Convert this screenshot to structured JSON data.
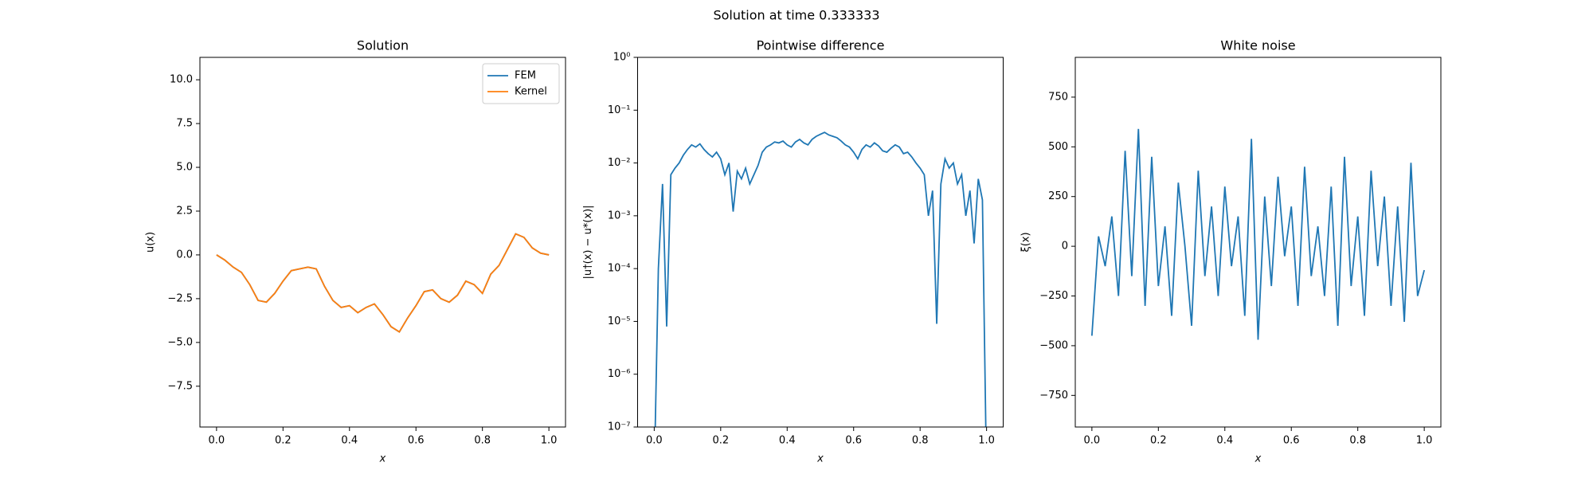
{
  "title": "Solution at time 0.333333",
  "chart_data": [
    {
      "type": "line",
      "title": "Solution",
      "xlabel": "x",
      "ylabel": "u(x)",
      "xlim": [
        -0.05,
        1.05
      ],
      "ylim": [
        -9.83,
        11.28
      ],
      "xticks": [
        {
          "value": 0,
          "label": "0.0"
        },
        0.2,
        0.4,
        0.6,
        0.8,
        {
          "value": 1,
          "label": "1.0"
        }
      ],
      "yticks": [
        {
          "value": -7.5,
          "label": "−7.5"
        },
        {
          "value": -5,
          "label": "−5.0"
        },
        {
          "value": -2.5,
          "label": "−2.5"
        },
        {
          "value": 0,
          "label": "0.0"
        },
        2.5,
        {
          "value": 5,
          "label": "5.0"
        },
        7.5,
        {
          "value": 10,
          "label": "10.0"
        }
      ],
      "legend": "upper right",
      "x": [
        0,
        0.025,
        0.05,
        0.075,
        0.1,
        0.125,
        0.15,
        0.175,
        0.2,
        0.225,
        0.25,
        0.275,
        0.3,
        0.325,
        0.35,
        0.375,
        0.4,
        0.425,
        0.45,
        0.475,
        0.5,
        0.525,
        0.55,
        0.575,
        0.6,
        0.625,
        0.65,
        0.675,
        0.7,
        0.725,
        0.75,
        0.775,
        0.8,
        0.825,
        0.85,
        0.875,
        0.9,
        0.925,
        0.95,
        0.975,
        1.0
      ],
      "series": [
        {
          "name": "FEM",
          "color": "#1f77b4",
          "values": [
            0,
            -0.3,
            -0.7,
            -1.0,
            -1.7,
            -2.6,
            -2.7,
            -2.2,
            -1.5,
            -0.9,
            -0.8,
            -0.7,
            -0.8,
            -1.8,
            -2.6,
            -3.0,
            -2.9,
            -3.3,
            -3.0,
            -2.8,
            -3.4,
            -4.1,
            -4.4,
            -3.6,
            -2.9,
            -2.1,
            -2.0,
            -2.5,
            -2.7,
            -2.3,
            -1.5,
            -1.7,
            -2.2,
            -1.1,
            -0.6,
            0.3,
            1.2,
            1.0,
            0.4,
            0.1,
            0.0
          ]
        },
        {
          "name": "Kernel",
          "color": "#ff7f0e",
          "values": [
            0,
            -0.3,
            -0.7,
            -1.0,
            -1.7,
            -2.6,
            -2.7,
            -2.2,
            -1.5,
            -0.9,
            -0.8,
            -0.7,
            -0.8,
            -1.8,
            -2.6,
            -3.0,
            -2.9,
            -3.3,
            -3.0,
            -2.8,
            -3.4,
            -4.1,
            -4.4,
            -3.6,
            -2.9,
            -2.1,
            -2.0,
            -2.5,
            -2.7,
            -2.3,
            -1.5,
            -1.7,
            -2.2,
            -1.1,
            -0.6,
            0.3,
            1.2,
            1.0,
            0.4,
            0.1,
            0.0
          ]
        }
      ]
    },
    {
      "type": "line",
      "title": "Pointwise difference",
      "xlabel": "x",
      "ylabel": "|u†(x) − u*(x)|",
      "yscale": "log",
      "xlim": [
        -0.05,
        1.05
      ],
      "ylim": [
        1e-07,
        1
      ],
      "xticks": [
        {
          "value": 0,
          "label": "0.0"
        },
        0.2,
        0.4,
        0.6,
        0.8,
        {
          "value": 1,
          "label": "1.0"
        }
      ],
      "yticks": [
        {
          "value": 1e-07,
          "label": "10⁻⁷"
        },
        {
          "value": 1e-06,
          "label": "10⁻⁶"
        },
        {
          "value": 1e-05,
          "label": "10⁻⁵"
        },
        {
          "value": 0.0001,
          "label": "10⁻⁴"
        },
        {
          "value": 0.001,
          "label": "10⁻³"
        },
        {
          "value": 0.01,
          "label": "10⁻²"
        },
        {
          "value": 0.1,
          "label": "10⁻¹"
        },
        {
          "value": 1,
          "label": "10⁰"
        }
      ],
      "x": [
        0,
        0.0125,
        0.025,
        0.0375,
        0.05,
        0.0625,
        0.075,
        0.0875,
        0.1,
        0.1125,
        0.125,
        0.1375,
        0.15,
        0.1625,
        0.175,
        0.1875,
        0.2,
        0.2125,
        0.225,
        0.2375,
        0.25,
        0.2625,
        0.275,
        0.2875,
        0.3,
        0.3125,
        0.325,
        0.3375,
        0.35,
        0.3625,
        0.375,
        0.3875,
        0.4,
        0.4125,
        0.425,
        0.4375,
        0.45,
        0.4625,
        0.475,
        0.4875,
        0.5,
        0.5125,
        0.525,
        0.5375,
        0.55,
        0.5625,
        0.575,
        0.5875,
        0.6,
        0.6125,
        0.625,
        0.6375,
        0.65,
        0.6625,
        0.675,
        0.6875,
        0.7,
        0.7125,
        0.725,
        0.7375,
        0.75,
        0.7625,
        0.775,
        0.7875,
        0.8,
        0.8125,
        0.825,
        0.8375,
        0.85,
        0.8625,
        0.875,
        0.8875,
        0.9,
        0.9125,
        0.925,
        0.9375,
        0.95,
        0.9625,
        0.975,
        0.9875,
        1.0
      ],
      "series": [
        {
          "color": "#1f77b4",
          "values": [
            1e-08,
            0.0001,
            0.004,
            8e-06,
            0.006,
            0.008,
            0.01,
            0.014,
            0.018,
            0.022,
            0.02,
            0.023,
            0.018,
            0.015,
            0.013,
            0.016,
            0.012,
            0.006,
            0.01,
            0.0012,
            0.007,
            0.005,
            0.008,
            0.004,
            0.006,
            0.009,
            0.016,
            0.02,
            0.022,
            0.025,
            0.024,
            0.026,
            0.022,
            0.02,
            0.025,
            0.028,
            0.024,
            0.022,
            0.028,
            0.032,
            0.035,
            0.038,
            0.034,
            0.032,
            0.03,
            0.026,
            0.022,
            0.02,
            0.016,
            0.012,
            0.018,
            0.022,
            0.02,
            0.024,
            0.021,
            0.017,
            0.016,
            0.019,
            0.022,
            0.02,
            0.015,
            0.016,
            0.013,
            0.01,
            0.008,
            0.006,
            0.001,
            0.003,
            9e-06,
            0.004,
            0.012,
            0.008,
            0.01,
            0.004,
            0.006,
            0.001,
            0.003,
            0.0003,
            0.005,
            0.002,
            1e-08
          ]
        }
      ]
    },
    {
      "type": "line",
      "title": "White noise",
      "xlabel": "x",
      "ylabel": "ξ(x)",
      "xlim": [
        -0.05,
        1.05
      ],
      "ylim": [
        -909,
        950
      ],
      "xticks": [
        {
          "value": 0,
          "label": "0.0"
        },
        0.2,
        0.4,
        0.6,
        0.8,
        {
          "value": 1,
          "label": "1.0"
        }
      ],
      "yticks": [
        {
          "value": -750,
          "label": "−750"
        },
        {
          "value": -500,
          "label": "−500"
        },
        {
          "value": -250,
          "label": "−250"
        },
        0,
        250,
        500,
        750
      ],
      "x": [
        0,
        0.02,
        0.04,
        0.06,
        0.08,
        0.1,
        0.12,
        0.14,
        0.16,
        0.18,
        0.2,
        0.22,
        0.24,
        0.26,
        0.28,
        0.3,
        0.32,
        0.34,
        0.36,
        0.38,
        0.4,
        0.42,
        0.44,
        0.46,
        0.48,
        0.5,
        0.52,
        0.54,
        0.56,
        0.58,
        0.6,
        0.62,
        0.64,
        0.66,
        0.68,
        0.7,
        0.72,
        0.74,
        0.76,
        0.78,
        0.8,
        0.82,
        0.84,
        0.86,
        0.88,
        0.9,
        0.92,
        0.94,
        0.96,
        0.98,
        1.0
      ],
      "series": [
        {
          "color": "#1f77b4",
          "values": [
            -450,
            50,
            -100,
            150,
            -250,
            480,
            -150,
            590,
            -300,
            450,
            -200,
            100,
            -350,
            320,
            0,
            -400,
            380,
            -150,
            200,
            -250,
            300,
            -100,
            150,
            -350,
            540,
            -470,
            250,
            -200,
            350,
            -50,
            200,
            -300,
            400,
            -150,
            100,
            -250,
            300,
            -400,
            450,
            -200,
            150,
            -350,
            380,
            -100,
            250,
            -300,
            200,
            -380,
            420,
            -250,
            -120
          ]
        }
      ]
    }
  ]
}
